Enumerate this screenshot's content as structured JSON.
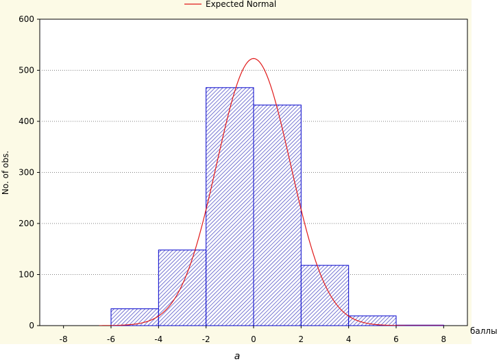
{
  "chart_data": {
    "type": "bar",
    "legend": [
      "Expected Normal"
    ],
    "legend_placement": "top-center",
    "xlabel": "баллы",
    "ylabel": "No. of obs.",
    "xlim": [
      -9,
      9
    ],
    "ylim": [
      0,
      600
    ],
    "xticks": [
      -8,
      -6,
      -4,
      -2,
      0,
      2,
      4,
      6,
      8
    ],
    "yticks": [
      0,
      100,
      200,
      300,
      400,
      500,
      600
    ],
    "grid": true,
    "bins": [
      {
        "x0": -6,
        "x1": -4,
        "value": 33
      },
      {
        "x0": -4,
        "x1": -2,
        "value": 148
      },
      {
        "x0": -2,
        "x1": 0,
        "value": 466
      },
      {
        "x0": 0,
        "x1": 2,
        "value": 432
      },
      {
        "x0": 2,
        "x1": 4,
        "value": 118
      },
      {
        "x0": 4,
        "x1": 6,
        "value": 19
      },
      {
        "x0": 6,
        "x1": 8,
        "value": 1
      }
    ],
    "normal_curve": {
      "peak": 523,
      "mean": 0,
      "sd": 1.55,
      "x_range": [
        -6.5,
        8
      ]
    },
    "colors": {
      "bar_edge": "#0000cc",
      "hatch": "#3d3dbf",
      "curve": "#e01818",
      "panel": "#fcfae6",
      "plot": "#ffffff",
      "grid": "#7f7f7f"
    }
  },
  "caption": "а"
}
